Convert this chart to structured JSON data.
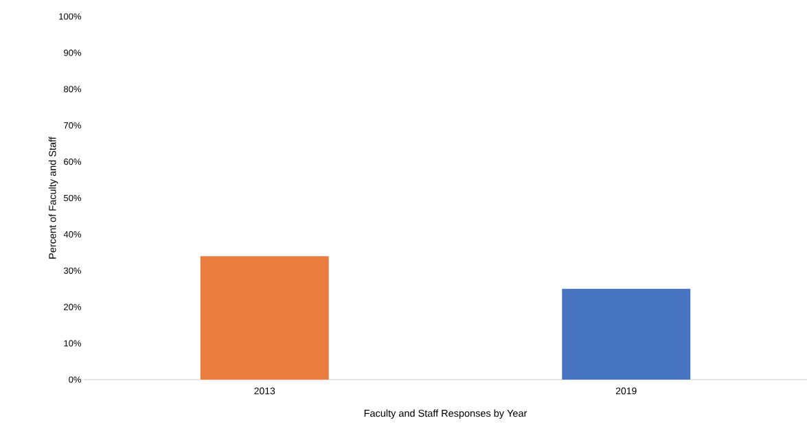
{
  "chart_data": {
    "type": "bar",
    "xlabel": "Faculty and Staff Responses by Year",
    "ylabel": "Percent of Faculty and Staff",
    "categories": [
      "2013",
      "2019"
    ],
    "values": [
      34,
      25
    ],
    "colors": [
      "#e97d3e",
      "#4674c1"
    ],
    "ylim": [
      0,
      100
    ],
    "yticks": [
      {
        "value": 0,
        "label": "0%"
      },
      {
        "value": 10,
        "label": "10%"
      },
      {
        "value": 20,
        "label": "20%"
      },
      {
        "value": 30,
        "label": "30%"
      },
      {
        "value": 40,
        "label": "40%"
      },
      {
        "value": 50,
        "label": "50%"
      },
      {
        "value": 60,
        "label": "60%"
      },
      {
        "value": 70,
        "label": "70%"
      },
      {
        "value": 80,
        "label": "80%"
      },
      {
        "value": 90,
        "label": "90%"
      },
      {
        "value": 100,
        "label": "100%"
      }
    ],
    "grid": false
  }
}
